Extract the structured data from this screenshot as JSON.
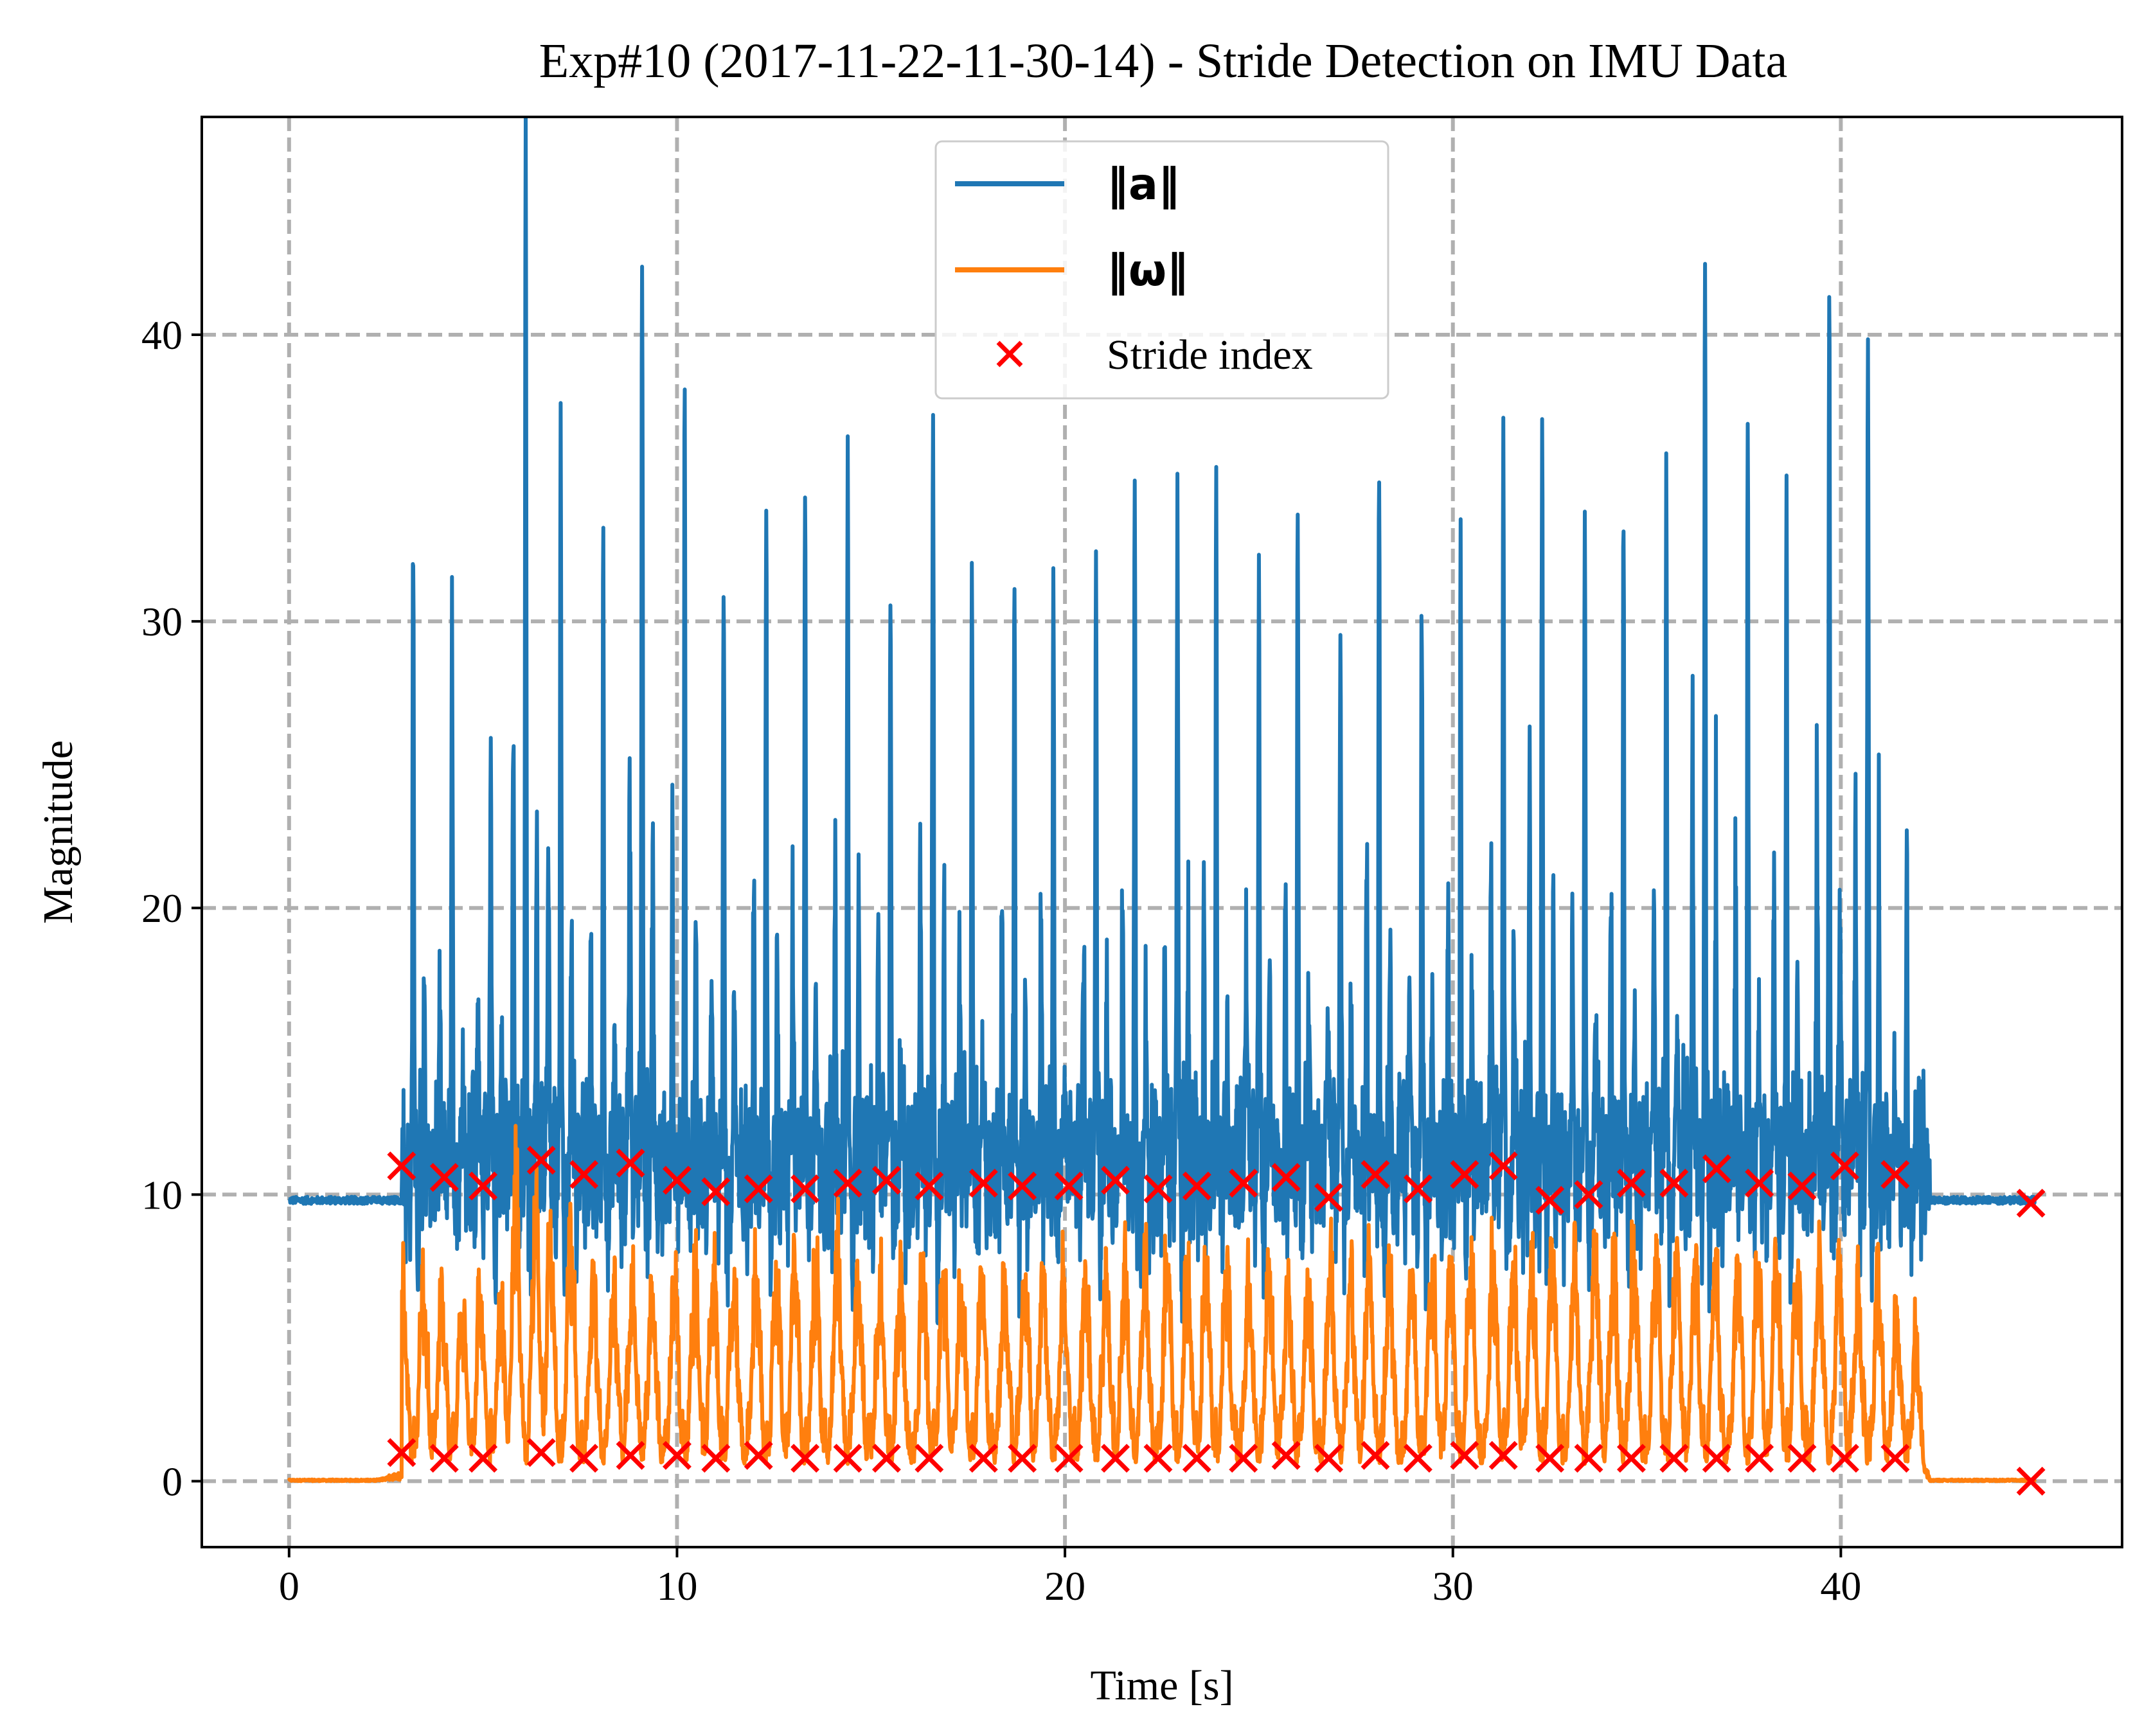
{
  "chart_data": {
    "type": "line",
    "title": "Exp#10 (2017-11-22-11-30-14) - Stride Detection on IMU Data",
    "xlabel": "Time [s]",
    "ylabel": "Magnitude",
    "xlim": [
      -2.25,
      47.25
    ],
    "ylim": [
      -2.3,
      47.6
    ],
    "xticks": [
      0,
      10,
      20,
      30,
      40
    ],
    "xtick_labels": [
      "0",
      "10",
      "20",
      "30",
      "40"
    ],
    "yticks": [
      0,
      10,
      20,
      30,
      40
    ],
    "ytick_labels": [
      "0",
      "10",
      "20",
      "30",
      "40"
    ],
    "grid": true,
    "legend_position": "upper center",
    "series": [
      {
        "name": "‖a‖",
        "kind": "line",
        "color": "#1f77b4",
        "baseline": 9.8,
        "active_range": [
          2.9,
          42.3
        ],
        "spike_times": [
          3.2,
          4.2,
          5.2,
          6.1,
          7.0,
          8.1,
          9.1,
          10.2,
          11.2,
          12.3,
          13.3,
          14.4,
          15.5,
          16.6,
          17.6,
          18.7,
          19.7,
          20.8,
          21.8,
          22.9,
          23.9,
          25.0,
          26.0,
          27.1,
          28.1,
          29.2,
          30.2,
          31.3,
          32.3,
          33.4,
          34.4,
          35.5,
          36.5,
          37.6,
          38.6,
          39.7,
          40.7,
          41.7
        ],
        "spike_peaks": [
          34.0,
          29.0,
          27.0,
          45.5,
          38.0,
          31.2,
          44.2,
          37.4,
          32.5,
          34.5,
          34.7,
          35.8,
          31.0,
          38.7,
          32.0,
          33.2,
          31.9,
          33.5,
          33.6,
          35.7,
          32.7,
          33.3,
          32.8,
          31.5,
          34.7,
          32.5,
          32.2,
          38.0,
          36.7,
          35.0,
          33.0,
          35.0,
          43.3,
          36.8,
          35.0,
          41.7,
          41.5,
          22.2
        ]
      },
      {
        "name": "‖ω‖",
        "kind": "line",
        "color": "#ff7f0e",
        "baseline": 0.0,
        "active_range": [
          2.9,
          42.3
        ],
        "spike_peaks": [
          7.9,
          7.0,
          7.0,
          11.6,
          9.5,
          8.0,
          8.0,
          8.0,
          8.1,
          8.0,
          8.5,
          9.0,
          8.0,
          8.0,
          8.0,
          8.0,
          8.0,
          8.0,
          8.0,
          8.5,
          8.0,
          8.0,
          8.0,
          8.5,
          8.5,
          8.5,
          8.5,
          9.0,
          9.0,
          9.0,
          9.0,
          9.0,
          8.5,
          8.5,
          8.5,
          8.5,
          7.5,
          6.2
        ]
      },
      {
        "name": "Stride index",
        "kind": "scatter",
        "marker": "x",
        "color": "#ff0000",
        "x": [
          2.9,
          4.0,
          5.0,
          6.5,
          7.6,
          8.8,
          10.0,
          11.0,
          12.1,
          13.3,
          14.4,
          15.4,
          16.5,
          17.9,
          18.9,
          20.1,
          21.3,
          22.4,
          23.4,
          24.6,
          25.7,
          26.8,
          28.0,
          29.1,
          30.3,
          31.3,
          32.5,
          33.5,
          34.6,
          35.7,
          36.8,
          37.9,
          39.0,
          40.1,
          41.4,
          44.9
        ],
        "y_accel": [
          11.0,
          10.6,
          10.3,
          11.2,
          10.7,
          11.1,
          10.5,
          10.1,
          10.2,
          10.2,
          10.4,
          10.5,
          10.3,
          10.4,
          10.3,
          10.3,
          10.5,
          10.2,
          10.3,
          10.4,
          10.6,
          9.9,
          10.7,
          10.2,
          10.7,
          11.0,
          9.8,
          10.0,
          10.4,
          10.4,
          10.9,
          10.4,
          10.3,
          11.0,
          10.7,
          9.7
        ],
        "y_gyro": [
          1.0,
          0.8,
          0.8,
          1.0,
          0.8,
          0.9,
          0.9,
          0.8,
          0.9,
          0.8,
          0.8,
          0.8,
          0.8,
          0.8,
          0.8,
          0.8,
          0.8,
          0.8,
          0.8,
          0.8,
          0.9,
          0.8,
          0.9,
          0.8,
          0.9,
          0.9,
          0.8,
          0.8,
          0.8,
          0.8,
          0.8,
          0.8,
          0.8,
          0.8,
          0.8,
          0.0
        ]
      }
    ]
  }
}
